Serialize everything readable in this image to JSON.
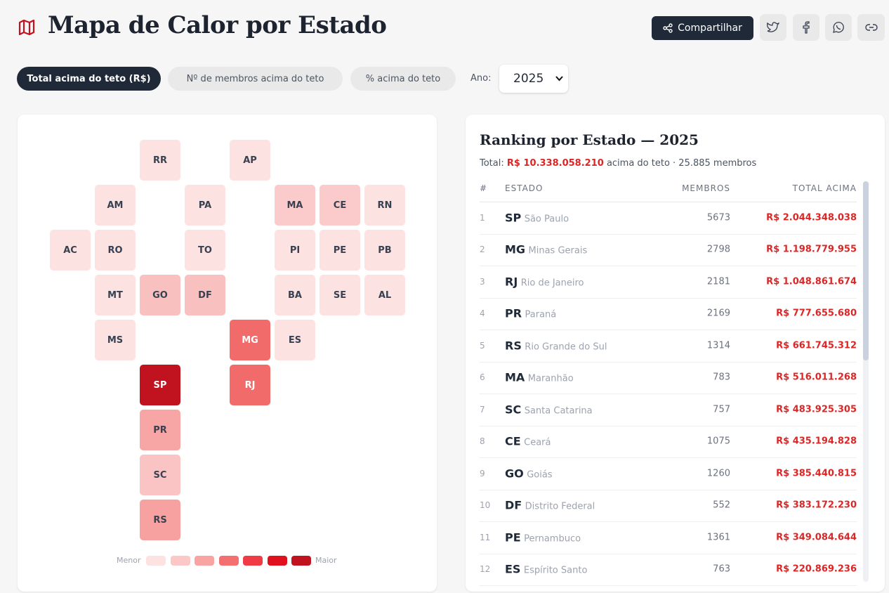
{
  "header": {
    "title": "Mapa de Calor por Estado",
    "share": "Compartilhar"
  },
  "tabs": [
    {
      "label": "Total acima do teto (R$)",
      "active": true
    },
    {
      "label": "Nº de membros acima do teto",
      "active": false
    },
    {
      "label": "% acima do teto",
      "active": false
    }
  ],
  "year_label": "Ano:",
  "year": "2025",
  "map": {
    "tiles": [
      {
        "label": "RR",
        "color": "#fde2e2"
      },
      {
        "label": "AP",
        "color": "#fde2e2"
      },
      {
        "label": "AM",
        "color": "#fde2e2"
      },
      {
        "label": "PA",
        "color": "#fde2e2"
      },
      {
        "label": "MA",
        "color": "#fbcaca"
      },
      {
        "label": "CE",
        "color": "#fbcaca"
      },
      {
        "label": "RN",
        "color": "#fde2e2"
      },
      {
        "label": "AC",
        "color": "#fde2e2"
      },
      {
        "label": "RO",
        "color": "#fde2e2"
      },
      {
        "label": "TO",
        "color": "#fde2e2"
      },
      {
        "label": "PI",
        "color": "#fde2e2"
      },
      {
        "label": "PE",
        "color": "#fde2e2"
      },
      {
        "label": "PB",
        "color": "#fde2e2"
      },
      {
        "label": "MT",
        "color": "#fde2e2"
      },
      {
        "label": "GO",
        "color": "#f9c0c0"
      },
      {
        "label": "DF",
        "color": "#f9c0c0"
      },
      {
        "label": "BA",
        "color": "#fde2e2"
      },
      {
        "label": "SE",
        "color": "#fde2e2"
      },
      {
        "label": "AL",
        "color": "#fde2e2"
      },
      {
        "label": "MS",
        "color": "#fde2e2"
      },
      {
        "label": "MG",
        "color": "#f26b6b"
      },
      {
        "label": "ES",
        "color": "#fde2e2"
      },
      {
        "label": "SP",
        "color": "#c1121f"
      },
      {
        "label": "RJ",
        "color": "#f26b6b"
      },
      {
        "label": "PR",
        "color": "#f8a5a5"
      },
      {
        "label": "SC",
        "color": "#fbc4c4"
      },
      {
        "label": "RS",
        "color": "#f7a1a1"
      }
    ],
    "legend": {
      "low": "Menor",
      "high": "Maior",
      "colors": [
        "#fde2e2",
        "#fcc7c7",
        "#f9a3a3",
        "#f46f6f",
        "#f03a46",
        "#e0101f",
        "#c1121f"
      ]
    }
  },
  "ranking": {
    "title": "Ranking por Estado — 2025",
    "summary": {
      "prefix": "Total:",
      "total": "R$ 10.338.058.210",
      "suffix": "acima do teto · 25.885 membros"
    },
    "columns": [
      "#",
      "ESTADO",
      "MEMBROS",
      "TOTAL ACIMA"
    ],
    "rows": [
      [
        "1",
        "SP",
        "São Paulo",
        "5673",
        "R$ 2.044.348.038"
      ],
      [
        "2",
        "MG",
        "Minas Gerais",
        "2798",
        "R$ 1.198.779.955"
      ],
      [
        "3",
        "RJ",
        "Rio de Janeiro",
        "2181",
        "R$ 1.048.861.674"
      ],
      [
        "4",
        "PR",
        "Paraná",
        "2169",
        "R$ 777.655.680"
      ],
      [
        "5",
        "RS",
        "Rio Grande do Sul",
        "1314",
        "R$ 661.745.312"
      ],
      [
        "6",
        "MA",
        "Maranhão",
        "783",
        "R$ 516.011.268"
      ],
      [
        "7",
        "SC",
        "Santa Catarina",
        "757",
        "R$ 483.925.305"
      ],
      [
        "8",
        "CE",
        "Ceará",
        "1075",
        "R$ 435.194.828"
      ],
      [
        "9",
        "GO",
        "Goiás",
        "1260",
        "R$ 385.440.815"
      ],
      [
        "10",
        "DF",
        "Distrito Federal",
        "552",
        "R$ 383.172.230"
      ],
      [
        "11",
        "PE",
        "Pernambuco",
        "1361",
        "R$ 349.084.644"
      ],
      [
        "12",
        "ES",
        "Espírito Santo",
        "763",
        "R$ 220.869.236"
      ]
    ]
  }
}
